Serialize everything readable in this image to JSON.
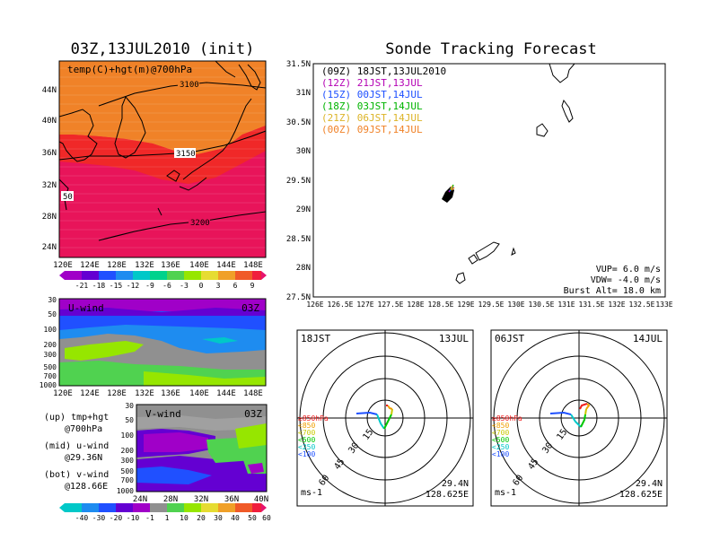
{
  "left_title": "03Z,13JUL2010 (init)",
  "right_title": "Sonde Tracking Forecast",
  "top_map": {
    "label": "temp(C)+hgt(m)@700hPa",
    "lat_labels": [
      "44N",
      "40N",
      "36N",
      "32N",
      "28N",
      "24N"
    ],
    "lon_labels": [
      "120E",
      "124E",
      "128E",
      "132E",
      "136E",
      "140E",
      "144E",
      "148E"
    ],
    "contour_labels": [
      "3100",
      "3150",
      "3200",
      "50"
    ],
    "colorbar_labels": [
      "-21",
      "-18",
      "-15",
      "-12",
      "-9",
      "-6",
      "-3",
      "0",
      "3",
      "6",
      "9"
    ],
    "colors": {
      "warm": "#f0143c",
      "orange": "#f08228",
      "light_orange": "#f0a040",
      "land_line": "#000000"
    }
  },
  "uwind": {
    "label": "U-wind",
    "time": "03Z",
    "pressure_labels": [
      "30",
      "50",
      "100",
      "200",
      "300",
      "500",
      "700",
      "1000"
    ],
    "lon_labels": [
      "120E",
      "124E",
      "128E",
      "132E",
      "136E",
      "140E",
      "144E",
      "148E"
    ],
    "colors": {
      "purple": "#a000c8",
      "blue": "#2050ff",
      "light_blue": "#1e8cf0",
      "teal": "#00aaaa",
      "gray": "#909090",
      "green": "#50d250",
      "light_green": "#96e600"
    }
  },
  "vwind": {
    "label": "V-wind",
    "time": "03Z",
    "pressure_labels": [
      "30",
      "50",
      "100",
      "200",
      "300",
      "500",
      "700",
      "1000"
    ],
    "lat_labels": [
      "24N",
      "28N",
      "32N",
      "36N",
      "40N"
    ]
  },
  "legend_notes": [
    {
      "line1": "(up) tmp+hgt",
      "line2": "@700hPa"
    },
    {
      "line1": "(mid) u-wind",
      "line2": "@29.36N"
    },
    {
      "line1": "(bot) v-wind",
      "line2": "@128.66E"
    }
  ],
  "bottom_colorbar_labels": [
    "-40",
    "-30",
    "-20",
    "-10",
    "-1",
    "1",
    "10",
    "20",
    "30",
    "40",
    "50",
    "60"
  ],
  "track_map": {
    "entries": [
      {
        "text": "(09Z) 18JST,13JUL2010",
        "color": "#000000"
      },
      {
        "text": "(12Z) 21JST,13JUL",
        "color": "#b400b4"
      },
      {
        "text": "(15Z) 00JST,14JUL",
        "color": "#1e50ff"
      },
      {
        "text": "(18Z) 03JST,14JUL",
        "color": "#00b400"
      },
      {
        "text": "(21Z) 06JST,14JUL",
        "color": "#dcb428"
      },
      {
        "text": "(00Z) 09JST,14JUL",
        "color": "#f08228"
      }
    ],
    "lat_labels": [
      "31.5N",
      "31N",
      "30.5N",
      "30N",
      "29.5N",
      "29N",
      "28.5N",
      "28N",
      "27.5N"
    ],
    "lon_labels": [
      "126E",
      "126.5E",
      "127E",
      "127.5E",
      "128E",
      "128.5E",
      "129E",
      "129.5E",
      "130E",
      "130.5E",
      "131E",
      "131.5E",
      "132E",
      "132.5E",
      "133E"
    ],
    "params": [
      "VUP=  6.0 m/s",
      "VDW= -4.0 m/s",
      "Burst Alt= 18.0 km"
    ]
  },
  "hodographs": [
    {
      "time_label": "18JST",
      "date_label": "13JUL",
      "lat": "29.4N",
      "lon": "128.625E",
      "units": "ms-1",
      "ring_labels": [
        "15",
        "30",
        "45",
        "60"
      ],
      "levels": [
        {
          "text": "≥850hPa",
          "color": "#f01e1e"
        },
        {
          "text": "<850",
          "color": "#f0a000"
        },
        {
          "text": "<700",
          "color": "#c8c800"
        },
        {
          "text": "<500",
          "color": "#00c800"
        },
        {
          "text": "<250",
          "color": "#00c8c8"
        },
        {
          "text": "<100",
          "color": "#1e50ff"
        }
      ]
    },
    {
      "time_label": "06JST",
      "date_label": "14JUL",
      "lat": "29.4N",
      "lon": "128.625E",
      "units": "ms-1",
      "ring_labels": [
        "15",
        "30",
        "45",
        "60"
      ],
      "levels": [
        {
          "text": "≥850hPa",
          "color": "#f01e1e"
        },
        {
          "text": "<850",
          "color": "#f0a000"
        },
        {
          "text": "<700",
          "color": "#c8c800"
        },
        {
          "text": "<500",
          "color": "#00c800"
        },
        {
          "text": "<250",
          "color": "#00c8c8"
        },
        {
          "text": "<100",
          "color": "#1e50ff"
        }
      ]
    }
  ]
}
